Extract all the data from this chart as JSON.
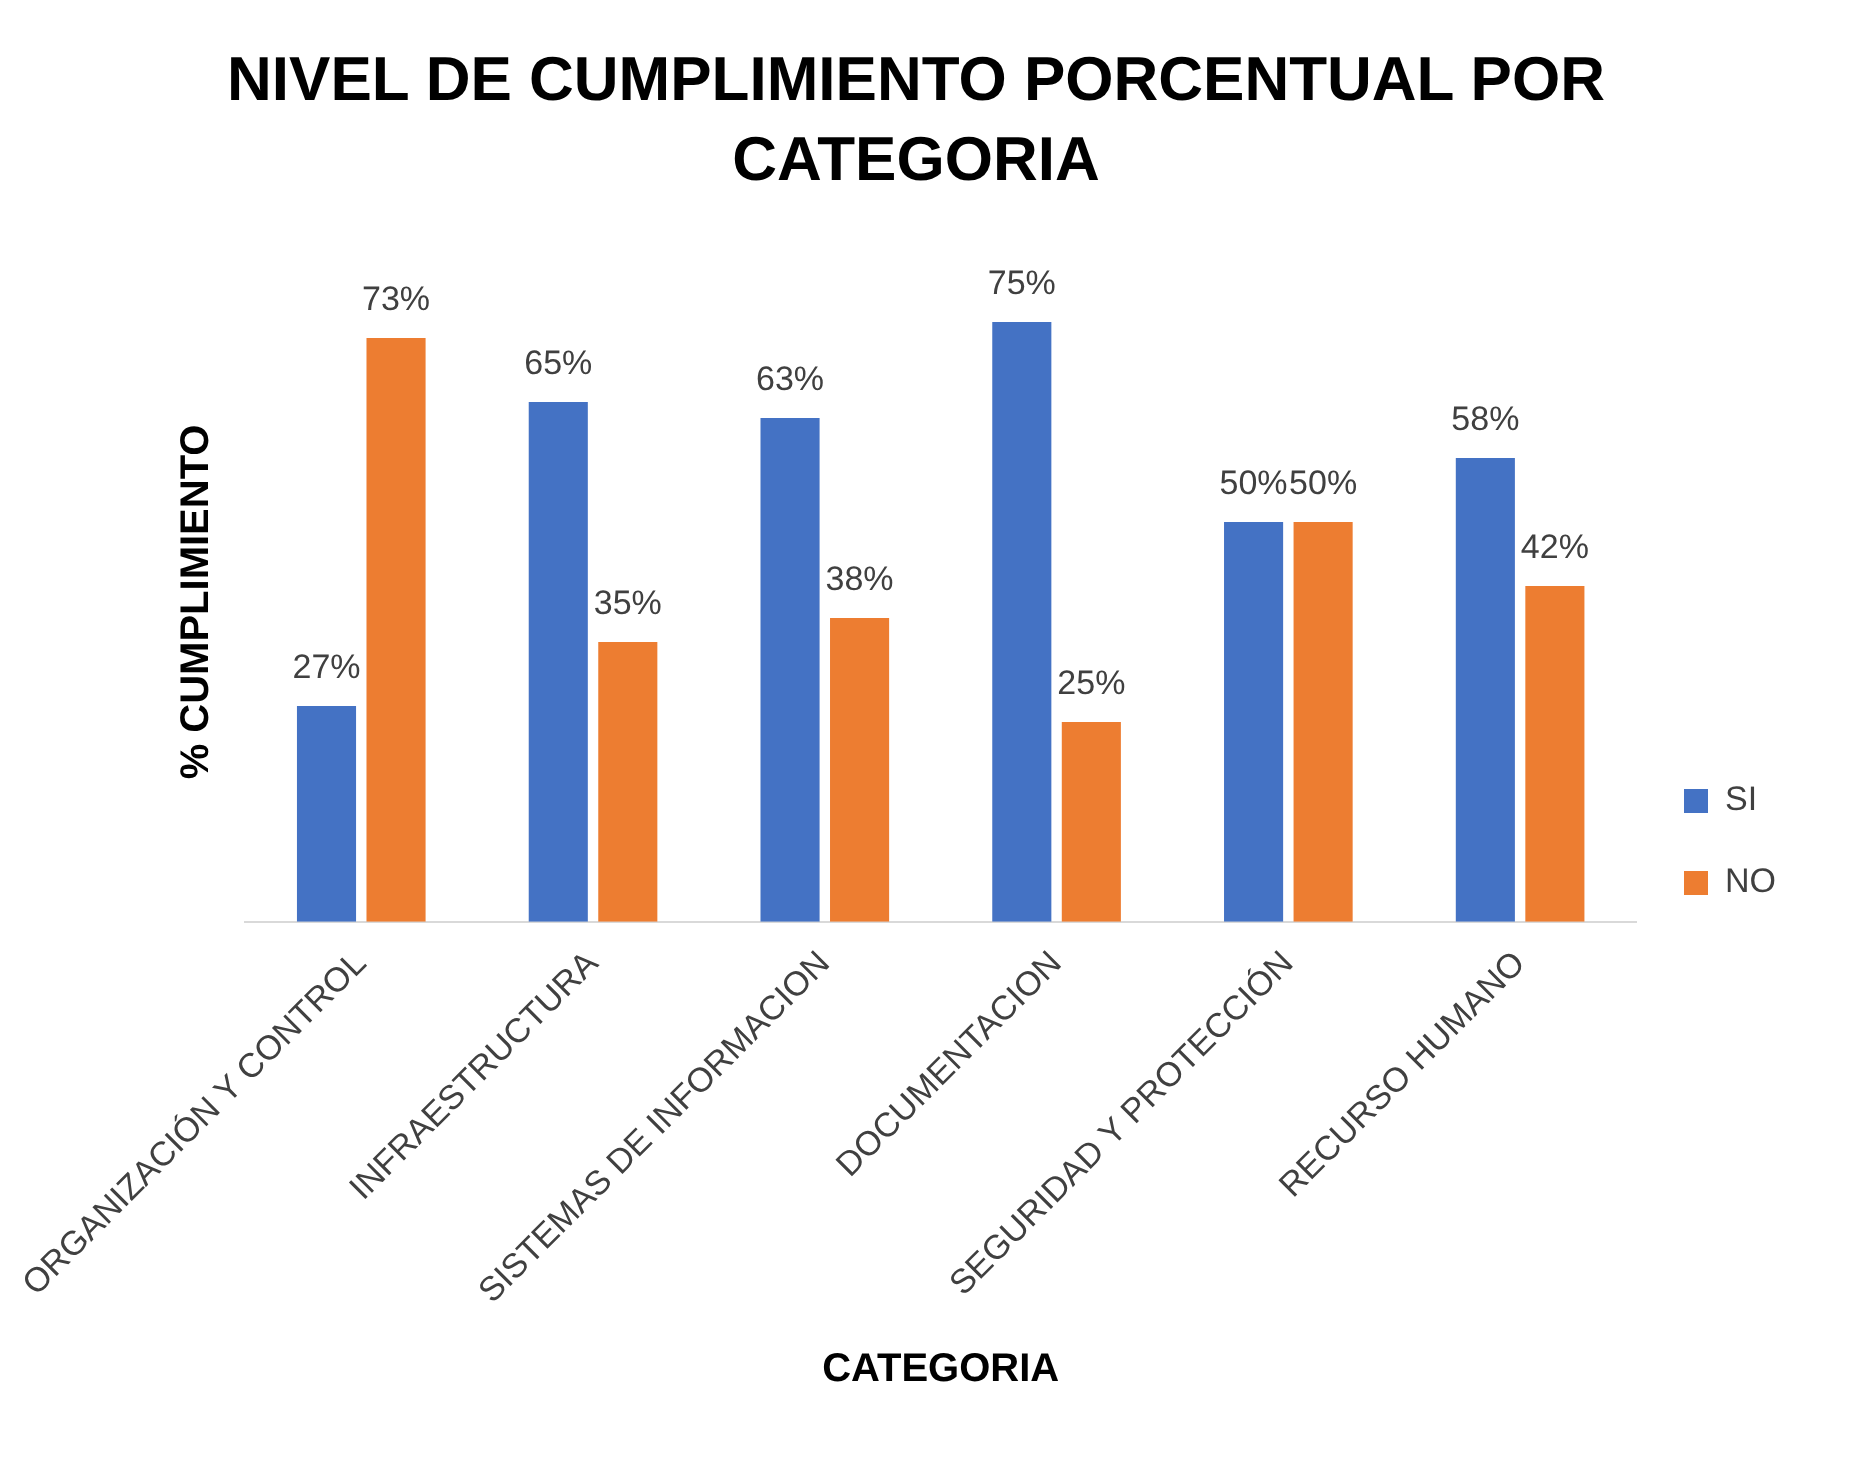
{
  "chart_data": {
    "type": "bar",
    "title": "NIVEL DE CUMPLIMIENTO PORCENTUAL POR CATEGORIA",
    "xlabel": "CATEGORIA",
    "ylabel": "% CUMPLIMIENTO",
    "categories": [
      "ORGANIZACIÓN Y CONTROL",
      "INFRAESTRUCTURA",
      "SISTEMAS DE INFORMACION",
      "DOCUMENTACION",
      "SEGURIDAD Y PROTECCIÓN",
      "RECURSO HUMANO"
    ],
    "series": [
      {
        "name": "SI",
        "color": "#4472c4",
        "values": [
          27,
          65,
          63,
          75,
          50,
          58
        ],
        "value_labels": [
          "27%",
          "65%",
          "63%",
          "75%",
          "50%",
          "58%"
        ]
      },
      {
        "name": "NO",
        "color": "#ed7d31",
        "values": [
          73,
          35,
          38,
          25,
          50,
          42
        ],
        "value_labels": [
          "73%",
          "35%",
          "38%",
          "25%",
          "50%",
          "42%"
        ]
      }
    ],
    "tick_labels": "x",
    "grid": false,
    "legend": "right"
  }
}
